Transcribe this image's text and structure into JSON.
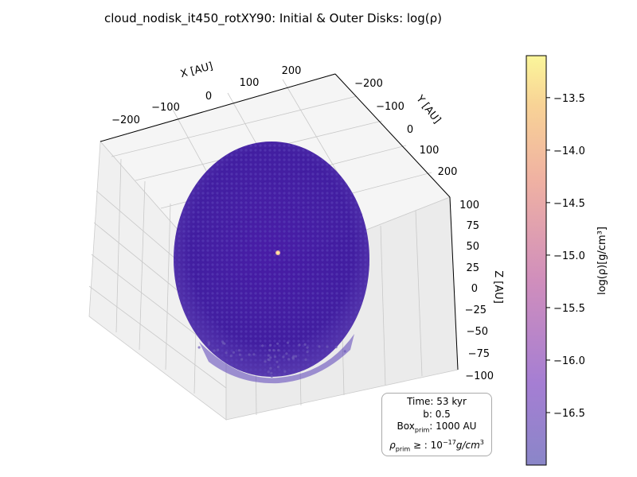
{
  "title": "cloud_nodisk_it450_rotXY90: Initial & Outer Disks: log(ρ)",
  "chart_data": {
    "type": "scatter",
    "projection": "3d",
    "title": "cloud_nodisk_it450_rotXY90: Initial & Outer Disks: log(ρ)",
    "axes": {
      "x": {
        "label": "X [AU]",
        "ticks": [
          "−200",
          "−100",
          "0",
          "100",
          "200"
        ],
        "range": [
          -250,
          250
        ]
      },
      "y": {
        "label": "Y [AU]",
        "ticks": [
          "−200",
          "−100",
          "0",
          "100",
          "200"
        ],
        "range": [
          -250,
          250
        ]
      },
      "z": {
        "label": "Z [AU]",
        "ticks": [
          "100",
          "75",
          "50",
          "25",
          "0",
          "−25",
          "−50",
          "−75",
          "−100"
        ],
        "range": [
          -100,
          100
        ]
      }
    },
    "grid": true,
    "colorbar": {
      "label": "log(ρ)[g/cm³]",
      "colormap": "plasma",
      "range": [
        -17.0,
        -13.1
      ],
      "ticks": [
        "−13.5",
        "−14.0",
        "−14.5",
        "−15.0",
        "−15.5",
        "−16.0",
        "−16.5"
      ],
      "tick_values": [
        -13.5,
        -14.0,
        -14.5,
        -15.0,
        -15.5,
        -16.0,
        -16.5
      ]
    },
    "series": [
      {
        "shape": "ellipsoidal cloud of particles",
        "x_range": [
          -250,
          250
        ],
        "y_range": [
          -250,
          250
        ],
        "z_range": [
          -100,
          100
        ],
        "dominant_log_rho": -16.8,
        "central_peak_log_rho": -13.5,
        "point_alpha": 0.6
      }
    ],
    "info_box": {
      "time": "Time: 53 kyr",
      "b": "b: 0.5",
      "box_prefix": "Box",
      "box_sub": "prim",
      "box_value": ": 1000 AU",
      "rho_prefix": "ρ",
      "rho_sub": "prim",
      "rho_mid": " ≥ : 10",
      "rho_exp": "−17",
      "rho_unit": "g/cm",
      "rho_unit_exp": "3"
    }
  }
}
